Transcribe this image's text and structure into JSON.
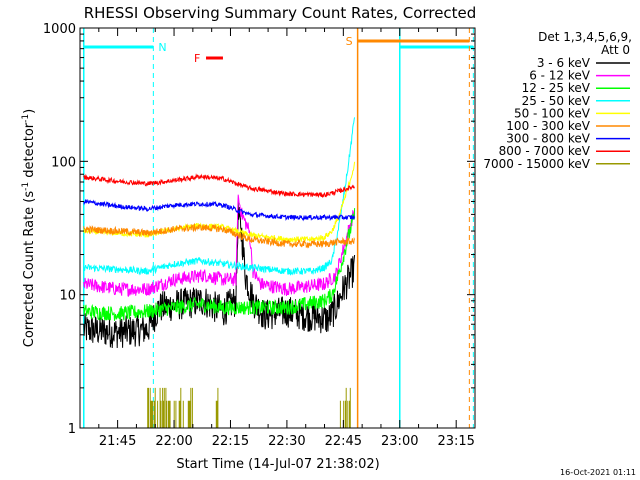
{
  "chart_data": {
    "type": "line",
    "title": "RHESSI Observing Summary Count Rates, Corrected",
    "xlabel": "Start Time (14-Jul-07 21:38:02)",
    "ylabel_main": "Corrected Count Rate (s",
    "ylabel_sup": "-1",
    "ylabel_mid": " detector",
    "ylabel_end": ")",
    "yscale": "log",
    "ylim": [
      1,
      1000
    ],
    "xlim_minutes": [
      -5,
      100
    ],
    "x_ticks": [
      {
        "label": "21:45",
        "min": 5
      },
      {
        "label": "22:00",
        "min": 20
      },
      {
        "label": "22:15",
        "min": 35
      },
      {
        "label": "22:30",
        "min": 50
      },
      {
        "label": "22:45",
        "min": 65
      },
      {
        "label": "23:00",
        "min": 80
      },
      {
        "label": "23:15",
        "min": 95
      }
    ],
    "y_ticks": [
      {
        "label": "1",
        "value": 1
      },
      {
        "label": "10",
        "value": 10
      },
      {
        "label": "100",
        "value": 100
      },
      {
        "label": "1000",
        "value": 1000
      }
    ],
    "legend_header": [
      "Det 1,3,4,5,6,9,",
      "Att 0"
    ],
    "legend_placement": "right",
    "series": [
      {
        "name": "3 - 6 keV",
        "color": "#000000",
        "noise": 0.28,
        "knots": [
          [
            -4,
            5.5
          ],
          [
            5,
            5.2
          ],
          [
            13,
            5.5
          ],
          [
            16,
            8
          ],
          [
            22,
            8.5
          ],
          [
            28,
            9
          ],
          [
            31,
            8
          ],
          [
            33,
            7.5
          ],
          [
            35,
            8.5
          ],
          [
            36.5,
            9
          ],
          [
            37,
            40
          ],
          [
            38,
            28
          ],
          [
            39,
            14
          ],
          [
            41,
            9
          ],
          [
            44,
            7
          ],
          [
            50,
            7.5
          ],
          [
            55,
            7
          ],
          [
            58,
            6.8
          ],
          [
            61,
            6.5
          ],
          [
            63,
            8
          ],
          [
            65,
            11
          ],
          [
            67,
            14
          ],
          [
            68,
            16
          ]
        ]
      },
      {
        "name": "6 - 12 keV",
        "color": "#ff00ff",
        "noise": 0.12,
        "knots": [
          [
            -4,
            12
          ],
          [
            5,
            11
          ],
          [
            13,
            11
          ],
          [
            20,
            13
          ],
          [
            28,
            14
          ],
          [
            33,
            13
          ],
          [
            36.5,
            13
          ],
          [
            37,
            55
          ],
          [
            38,
            40
          ],
          [
            40,
            30
          ],
          [
            41,
            15
          ],
          [
            43,
            12
          ],
          [
            50,
            11
          ],
          [
            55,
            11.5
          ],
          [
            60,
            12
          ],
          [
            63,
            14
          ],
          [
            65,
            22
          ],
          [
            67,
            35
          ],
          [
            68,
            42
          ]
        ]
      },
      {
        "name": "12 - 25 keV",
        "color": "#00ff00",
        "noise": 0.13,
        "knots": [
          [
            -4,
            7.5
          ],
          [
            5,
            7.2
          ],
          [
            13,
            7.5
          ],
          [
            20,
            8
          ],
          [
            27,
            8.5
          ],
          [
            33,
            8
          ],
          [
            40,
            8
          ],
          [
            50,
            8
          ],
          [
            55,
            8.5
          ],
          [
            60,
            9
          ],
          [
            62,
            10
          ],
          [
            64,
            15
          ],
          [
            66,
            25
          ],
          [
            68,
            40
          ]
        ]
      },
      {
        "name": "25 - 50 keV",
        "color": "#00ffff",
        "noise": 0.06,
        "knots": [
          [
            -4,
            16
          ],
          [
            5,
            15.5
          ],
          [
            13,
            15
          ],
          [
            20,
            17
          ],
          [
            27,
            18
          ],
          [
            33,
            17
          ],
          [
            40,
            16
          ],
          [
            50,
            15
          ],
          [
            57,
            15
          ],
          [
            60,
            16
          ],
          [
            62,
            18
          ],
          [
            64,
            35
          ],
          [
            66,
            80
          ],
          [
            68,
            220
          ]
        ]
      },
      {
        "name": "50 - 100 keV",
        "color": "#ffff00",
        "noise": 0.05,
        "knots": [
          [
            -4,
            30
          ],
          [
            5,
            29
          ],
          [
            13,
            28
          ],
          [
            20,
            31
          ],
          [
            27,
            33
          ],
          [
            33,
            32
          ],
          [
            40,
            28
          ],
          [
            50,
            26
          ],
          [
            57,
            26
          ],
          [
            60,
            27
          ],
          [
            62,
            30
          ],
          [
            64,
            40
          ],
          [
            66,
            60
          ],
          [
            68,
            95
          ]
        ]
      },
      {
        "name": "100 - 300 keV",
        "color": "#ff8800",
        "noise": 0.06,
        "knots": [
          [
            -4,
            31
          ],
          [
            5,
            30
          ],
          [
            13,
            29
          ],
          [
            20,
            31
          ],
          [
            27,
            32
          ],
          [
            33,
            31
          ],
          [
            40,
            26
          ],
          [
            50,
            24
          ],
          [
            60,
            24
          ],
          [
            64,
            25
          ],
          [
            68,
            25
          ]
        ]
      },
      {
        "name": "300 - 800 keV",
        "color": "#0000ff",
        "noise": 0.04,
        "knots": [
          [
            -4,
            50
          ],
          [
            5,
            46
          ],
          [
            13,
            44
          ],
          [
            20,
            47
          ],
          [
            27,
            48
          ],
          [
            33,
            47
          ],
          [
            40,
            40
          ],
          [
            50,
            38
          ],
          [
            60,
            38
          ],
          [
            64,
            38
          ],
          [
            68,
            38
          ]
        ]
      },
      {
        "name": "800 - 7000 keV",
        "color": "#ff0000",
        "noise": 0.04,
        "knots": [
          [
            -4,
            76
          ],
          [
            5,
            71
          ],
          [
            13,
            68
          ],
          [
            20,
            72
          ],
          [
            27,
            77
          ],
          [
            33,
            74
          ],
          [
            40,
            63
          ],
          [
            50,
            57
          ],
          [
            60,
            56
          ],
          [
            64,
            60
          ],
          [
            68,
            65
          ]
        ]
      },
      {
        "name": "7000 - 15000 keV",
        "color": "#999900",
        "noise": 0,
        "knots": []
      }
    ],
    "annotations": {
      "night_start": -4,
      "night_end": 14.5,
      "night_label": "N",
      "saa_start": 80,
      "saa_end": 98.5,
      "saa_label": "S",
      "saa_pre_line": 68.8,
      "flare_start": 28.5,
      "flare_end": 33,
      "flare_label": "F"
    },
    "timestamp": "16-Oct-2021 01:11"
  }
}
